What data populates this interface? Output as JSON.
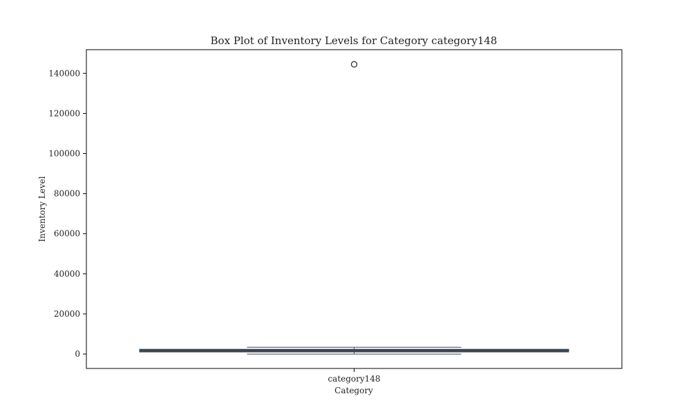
{
  "chart_data": {
    "type": "box",
    "title": "Box Plot of Inventory Levels for Category category148",
    "xlabel": "Category",
    "ylabel": "Inventory Level",
    "categories": [
      "category148"
    ],
    "ylim": [
      -7200,
      151800
    ],
    "yticks": [
      0,
      20000,
      40000,
      60000,
      80000,
      100000,
      120000,
      140000
    ],
    "grid": false,
    "boxes": [
      {
        "category": "category148",
        "whisker_low": 0,
        "q1": 1200,
        "median": 1700,
        "q3": 2200,
        "whisker_high": 3400,
        "outliers": [
          144500
        ]
      }
    ],
    "colors": {
      "box_edge": "#3b4652",
      "axes": "#000000"
    }
  }
}
